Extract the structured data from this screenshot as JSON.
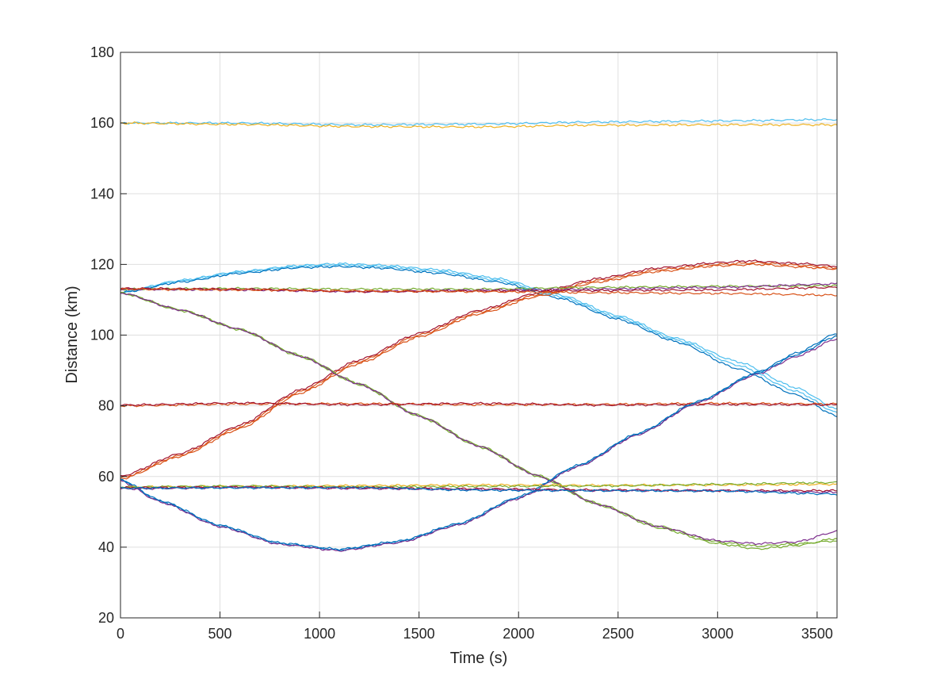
{
  "chart_data": {
    "type": "line",
    "title": "",
    "xlabel": "Time (s)",
    "ylabel": "Distance (km)",
    "xlim": [
      0,
      3600
    ],
    "ylim": [
      20,
      180
    ],
    "xticks": [
      0,
      500,
      1000,
      1500,
      2000,
      2500,
      3000,
      3500
    ],
    "yticks": [
      20,
      40,
      60,
      80,
      100,
      120,
      140,
      160,
      180
    ],
    "grid": true,
    "legend": "none",
    "colors": [
      "#0072BD",
      "#D95319",
      "#EDB120",
      "#7E2F8E",
      "#77AC30",
      "#4DBEEE",
      "#A2142F"
    ],
    "series": [
      {
        "color": "#4DBEEE",
        "points": [
          [
            0,
            160
          ],
          [
            600,
            160
          ],
          [
            1200,
            159.5
          ],
          [
            1800,
            159.7
          ],
          [
            2400,
            160.3
          ],
          [
            3000,
            160.6
          ],
          [
            3600,
            161
          ]
        ]
      },
      {
        "color": "#EDB120",
        "points": [
          [
            0,
            160
          ],
          [
            600,
            159.6
          ],
          [
            1200,
            159
          ],
          [
            1800,
            158.9
          ],
          [
            2400,
            159.4
          ],
          [
            3000,
            159.5
          ],
          [
            3600,
            159.5
          ]
        ]
      },
      {
        "color": "#4DBEEE",
        "points": [
          [
            0,
            112
          ],
          [
            300,
            115.5
          ],
          [
            600,
            118
          ],
          [
            900,
            119.7
          ],
          [
            1100,
            120.2
          ],
          [
            1300,
            119.8
          ],
          [
            1600,
            118.5
          ],
          [
            1900,
            116
          ],
          [
            2200,
            111.5
          ],
          [
            2500,
            105.5
          ],
          [
            2800,
            99
          ],
          [
            3100,
            92.5
          ],
          [
            3400,
            85
          ],
          [
            3600,
            79
          ]
        ]
      },
      {
        "color": "#4DBEEE",
        "points": [
          [
            0,
            112
          ],
          [
            300,
            115.3
          ],
          [
            600,
            117.8
          ],
          [
            900,
            119.4
          ],
          [
            1100,
            119.8
          ],
          [
            1300,
            119.4
          ],
          [
            1600,
            118
          ],
          [
            1900,
            115.5
          ],
          [
            2200,
            111
          ],
          [
            2500,
            105
          ],
          [
            2800,
            98.5
          ],
          [
            3100,
            91.5
          ],
          [
            3400,
            84
          ],
          [
            3600,
            78
          ]
        ]
      },
      {
        "color": "#0072BD",
        "points": [
          [
            0,
            112
          ],
          [
            300,
            115
          ],
          [
            600,
            117.5
          ],
          [
            900,
            119.1
          ],
          [
            1100,
            119.4
          ],
          [
            1300,
            119
          ],
          [
            1600,
            117.5
          ],
          [
            1900,
            115
          ],
          [
            2200,
            110.5
          ],
          [
            2500,
            104.5
          ],
          [
            2800,
            98
          ],
          [
            3100,
            90.5
          ],
          [
            3400,
            83
          ],
          [
            3600,
            77
          ]
        ]
      },
      {
        "color": "#D95319",
        "points": [
          [
            0,
            59.5
          ],
          [
            300,
            66
          ],
          [
            600,
            74
          ],
          [
            900,
            84
          ],
          [
            1200,
            92.5
          ],
          [
            1500,
            100
          ],
          [
            1800,
            106.5
          ],
          [
            2100,
            111.5
          ],
          [
            2400,
            115.5
          ],
          [
            2700,
            118.5
          ],
          [
            3000,
            120
          ],
          [
            3200,
            120.5
          ],
          [
            3400,
            119.8
          ],
          [
            3600,
            119
          ]
        ]
      },
      {
        "color": "#A2142F",
        "points": [
          [
            0,
            60
          ],
          [
            300,
            66.5
          ],
          [
            600,
            74.5
          ],
          [
            900,
            84.5
          ],
          [
            1200,
            93
          ],
          [
            1500,
            100.5
          ],
          [
            1800,
            107
          ],
          [
            2100,
            112
          ],
          [
            2400,
            116
          ],
          [
            2700,
            119
          ],
          [
            3000,
            120.5
          ],
          [
            3150,
            121
          ],
          [
            3400,
            120.3
          ],
          [
            3600,
            119.5
          ]
        ]
      },
      {
        "color": "#D95319",
        "points": [
          [
            0,
            59.2
          ],
          [
            300,
            65.7
          ],
          [
            600,
            73.5
          ],
          [
            900,
            83.5
          ],
          [
            1200,
            92
          ],
          [
            1500,
            99.5
          ],
          [
            1800,
            106
          ],
          [
            2100,
            111
          ],
          [
            2400,
            115
          ],
          [
            2700,
            118
          ],
          [
            3000,
            119.6
          ],
          [
            3200,
            120
          ],
          [
            3400,
            119.3
          ],
          [
            3600,
            118.7
          ]
        ]
      },
      {
        "color": "#77AC30",
        "points": [
          [
            0,
            113
          ],
          [
            600,
            113.2
          ],
          [
            1200,
            113
          ],
          [
            1800,
            113
          ],
          [
            2400,
            113.5
          ],
          [
            3000,
            113.8
          ],
          [
            3600,
            114
          ]
        ]
      },
      {
        "color": "#7E2F8E",
        "points": [
          [
            0,
            113
          ],
          [
            600,
            112.8
          ],
          [
            1200,
            112.3
          ],
          [
            1800,
            112.7
          ],
          [
            2400,
            113
          ],
          [
            3000,
            113.5
          ],
          [
            3600,
            114.5
          ]
        ]
      },
      {
        "color": "#A2142F",
        "points": [
          [
            0,
            113.2
          ],
          [
            600,
            113
          ],
          [
            1200,
            112.3
          ],
          [
            1800,
            112.5
          ],
          [
            2400,
            112.6
          ],
          [
            3000,
            112.8
          ],
          [
            3600,
            113.5
          ]
        ]
      },
      {
        "color": "#D95319",
        "points": [
          [
            0,
            113
          ],
          [
            600,
            112.8
          ],
          [
            1200,
            112.5
          ],
          [
            1800,
            112.3
          ],
          [
            2400,
            112
          ],
          [
            3000,
            111.8
          ],
          [
            3600,
            111.3
          ]
        ]
      },
      {
        "color": "#77AC30",
        "points": [
          [
            0,
            112
          ],
          [
            300,
            107
          ],
          [
            600,
            101.5
          ],
          [
            900,
            94
          ],
          [
            1200,
            86
          ],
          [
            1500,
            77
          ],
          [
            1800,
            68.5
          ],
          [
            2100,
            60
          ],
          [
            2400,
            52
          ],
          [
            2700,
            45.5
          ],
          [
            3000,
            41
          ],
          [
            3200,
            39.5
          ],
          [
            3400,
            40.5
          ],
          [
            3600,
            42.5
          ]
        ]
      },
      {
        "color": "#77AC30",
        "points": [
          [
            0,
            112
          ],
          [
            300,
            107.2
          ],
          [
            600,
            101.7
          ],
          [
            900,
            94.3
          ],
          [
            1200,
            86.3
          ],
          [
            1500,
            77.3
          ],
          [
            1800,
            68.8
          ],
          [
            2100,
            60.3
          ],
          [
            2400,
            52.3
          ],
          [
            2700,
            46
          ],
          [
            3000,
            41.5
          ],
          [
            3200,
            40.3
          ],
          [
            3400,
            41
          ],
          [
            3600,
            41.8
          ]
        ]
      },
      {
        "color": "#7E2F8E",
        "points": [
          [
            0,
            112
          ],
          [
            300,
            107.1
          ],
          [
            600,
            101.6
          ],
          [
            900,
            94.1
          ],
          [
            1200,
            86.1
          ],
          [
            1500,
            77.1
          ],
          [
            1800,
            68.6
          ],
          [
            2100,
            60.1
          ],
          [
            2400,
            52.1
          ],
          [
            2700,
            45.8
          ],
          [
            3000,
            41.8
          ],
          [
            3200,
            41
          ],
          [
            3400,
            41.5
          ],
          [
            3600,
            44.5
          ]
        ]
      },
      {
        "color": "#D95319",
        "points": [
          [
            0,
            80
          ],
          [
            600,
            80.5
          ],
          [
            1200,
            80.6
          ],
          [
            1800,
            80.3
          ],
          [
            2400,
            80.4
          ],
          [
            3000,
            80.7
          ],
          [
            3600,
            80.5
          ]
        ]
      },
      {
        "color": "#A2142F",
        "points": [
          [
            0,
            80.2
          ],
          [
            600,
            80.8
          ],
          [
            1200,
            80.3
          ],
          [
            1800,
            80.7
          ],
          [
            2400,
            80.2
          ],
          [
            3000,
            80.4
          ],
          [
            3600,
            80.3
          ]
        ]
      },
      {
        "color": "#0072BD",
        "points": [
          [
            0,
            59
          ],
          [
            200,
            53
          ],
          [
            500,
            46
          ],
          [
            800,
            41
          ],
          [
            1100,
            39.2
          ],
          [
            1400,
            41.5
          ],
          [
            1700,
            46.5
          ],
          [
            2000,
            54
          ],
          [
            2300,
            63
          ],
          [
            2600,
            72
          ],
          [
            2900,
            81
          ],
          [
            3200,
            89.5
          ],
          [
            3400,
            95
          ],
          [
            3600,
            100.5
          ]
        ]
      },
      {
        "color": "#7E2F8E",
        "points": [
          [
            0,
            58.8
          ],
          [
            200,
            52.8
          ],
          [
            500,
            45.8
          ],
          [
            800,
            40.8
          ],
          [
            1100,
            39
          ],
          [
            1400,
            41.3
          ],
          [
            1700,
            46.3
          ],
          [
            2000,
            53.8
          ],
          [
            2300,
            62.8
          ],
          [
            2600,
            71.8
          ],
          [
            2900,
            80.8
          ],
          [
            3200,
            89
          ],
          [
            3400,
            94
          ],
          [
            3600,
            99
          ]
        ]
      },
      {
        "color": "#0072BD",
        "points": [
          [
            0,
            59.2
          ],
          [
            200,
            53.2
          ],
          [
            500,
            46.2
          ],
          [
            800,
            41.2
          ],
          [
            1100,
            39.4
          ],
          [
            1400,
            41.7
          ],
          [
            1700,
            46.7
          ],
          [
            2000,
            54.2
          ],
          [
            2300,
            63.2
          ],
          [
            2600,
            72.2
          ],
          [
            2900,
            81.2
          ],
          [
            3200,
            89.3
          ],
          [
            3400,
            94.5
          ],
          [
            3600,
            99.8
          ]
        ]
      },
      {
        "color": "#EDB120",
        "points": [
          [
            0,
            57
          ],
          [
            600,
            57.2
          ],
          [
            1200,
            57.4
          ],
          [
            1800,
            57.6
          ],
          [
            2400,
            57.5
          ],
          [
            3000,
            57.6
          ],
          [
            3600,
            57.8
          ]
        ]
      },
      {
        "color": "#77AC30",
        "points": [
          [
            0,
            57
          ],
          [
            600,
            57.3
          ],
          [
            1200,
            57
          ],
          [
            1800,
            57.2
          ],
          [
            2400,
            57.3
          ],
          [
            3000,
            57.8
          ],
          [
            3600,
            58.3
          ]
        ]
      },
      {
        "color": "#A2142F",
        "points": [
          [
            0,
            56.8
          ],
          [
            600,
            57
          ],
          [
            1200,
            56.8
          ],
          [
            1800,
            56.5
          ],
          [
            2400,
            56.2
          ],
          [
            3000,
            56
          ],
          [
            3600,
            56
          ]
        ]
      },
      {
        "color": "#7E2F8E",
        "points": [
          [
            0,
            56.5
          ],
          [
            600,
            56.9
          ],
          [
            1200,
            56.6
          ],
          [
            1800,
            56.3
          ],
          [
            2400,
            56
          ],
          [
            3000,
            56
          ],
          [
            3600,
            55.5
          ]
        ]
      },
      {
        "color": "#0072BD",
        "points": [
          [
            0,
            56.7
          ],
          [
            600,
            56.8
          ],
          [
            1200,
            56.9
          ],
          [
            1800,
            56.1
          ],
          [
            2400,
            56
          ],
          [
            3000,
            55.9
          ],
          [
            3600,
            55
          ]
        ]
      }
    ]
  }
}
